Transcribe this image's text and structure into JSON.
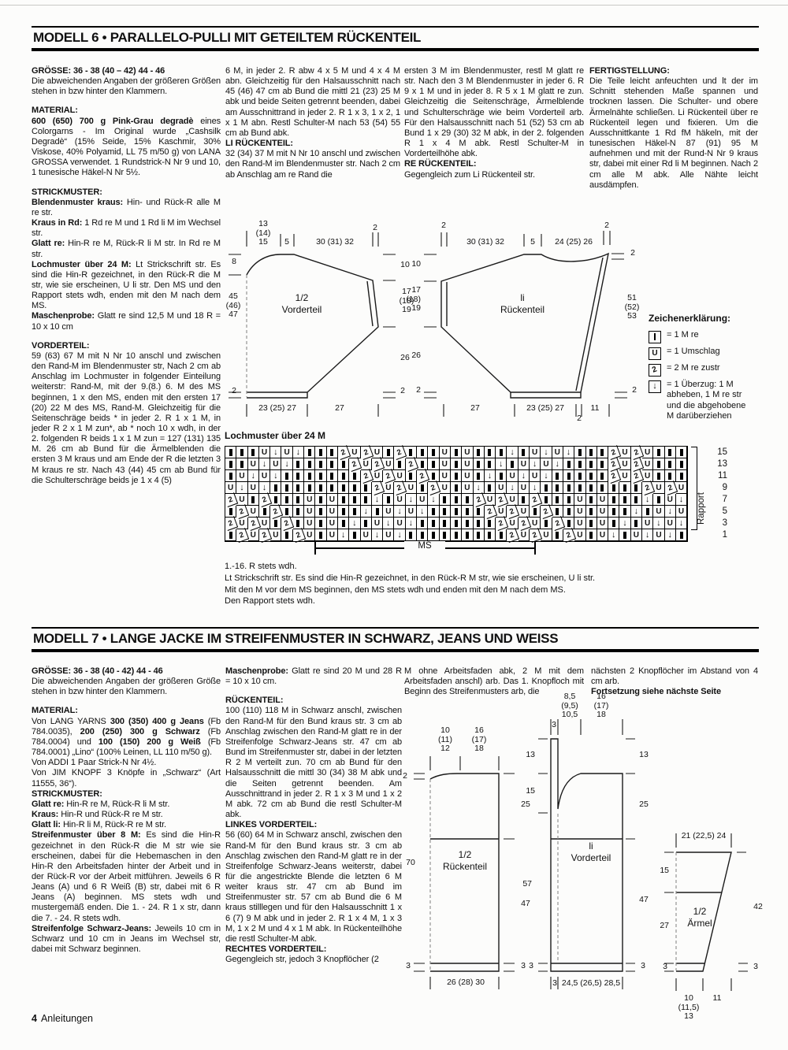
{
  "page": {
    "footer_number": "4",
    "footer_label": "Anleitungen"
  },
  "model6": {
    "title": "MODELL 6 • PARALLELO-PULLI MIT GETEILTEM RÜCKENTEIL",
    "columns": [
      [
        {
          "runs": [
            {
              "b": true,
              "t": "GRÖSSE: 36 - 38 (40 – 42) 44 - 46"
            }
          ]
        },
        {
          "runs": [
            {
              "t": "Die abweichenden Angaben der größeren Größen stehen in bzw hinter den Klammern."
            }
          ]
        },
        {
          "gap": true,
          "runs": [
            {
              "b": true,
              "t": "MATERIAL:"
            }
          ]
        },
        {
          "runs": [
            {
              "b": true,
              "t": "600 (650) 700 g Pink-Grau degradè "
            },
            {
              "t": "eines Colorgarns - Im Original wurde „Cashsilk Degradè“ (15% Seide, 15% Kaschmir, 30% Viskose, 40% Polyamid, LL 75 m/50 g) von LANA GROSSA verwendet. 1 Rundstrick-N Nr 9 und 10, 1 tunesische Häkel-N Nr 5½."
            }
          ]
        },
        {
          "gap": true,
          "runs": [
            {
              "b": true,
              "t": "STRICKMUSTER:"
            }
          ]
        },
        {
          "runs": [
            {
              "b": true,
              "t": "Blendenmuster kraus: "
            },
            {
              "t": "Hin- und Rück-R alle M re str."
            }
          ]
        },
        {
          "runs": [
            {
              "b": true,
              "t": "Kraus in Rd: "
            },
            {
              "t": "1 Rd re M und 1 Rd li M im Wechsel str."
            }
          ]
        },
        {
          "runs": [
            {
              "b": true,
              "t": "Glatt re: "
            },
            {
              "t": "Hin-R re M, Rück-R li M str. In Rd re M str."
            }
          ]
        },
        {
          "runs": [
            {
              "b": true,
              "t": "Lochmuster über 24 M: "
            },
            {
              "t": "Lt Strickschrift str. Es sind die Hin-R gezeichnet, in den Rück-R die M str, wie sie erscheinen, U li str. Den MS und den Rapport stets wdh, enden mit den M nach dem MS."
            }
          ]
        },
        {
          "runs": [
            {
              "b": true,
              "t": "Maschenprobe: "
            },
            {
              "t": "Glatt re sind 12,5 M und 18 R = 10 x 10 cm"
            }
          ]
        },
        {
          "gap": true,
          "runs": [
            {
              "b": true,
              "t": "VORDERTEIL:"
            }
          ]
        },
        {
          "runs": [
            {
              "t": "59 (63) 67 M mit N Nr 10 anschl und zwischen den Rand-M im Blendenmuster str, Nach 2 cm ab Anschlag im Lochmuster in folgender Einteilung weiterstr: Rand-M, mit der 9.(8.) 6. M des MS beginnen, 1 x den MS, enden mit den ersten 17 (20) 22 M des MS, Rand-M. Gleichzeitig für die Seitenschräge beids * in jeder 2. R 1 x 1 M, in jeder R 2 x 1 M zun*, ab * noch 10 x wdh, in der 2. folgenden R beids 1 x 1 M zun = 127 (131) 135 M. 26 cm ab Bund für die Ärmelblenden die ersten 3 M kraus und am Ende der R die letzten 3 M kraus re str. Nach 43 (44) 45 cm ab Bund für die Schulterschräge beids je 1 x 4 (5)"
            }
          ]
        }
      ],
      [
        {
          "runs": [
            {
              "t": "6 M, in jeder 2. R abw 4 x 5 M und 4 x 4 M abn. Gleichzeitig für den Halsausschnitt nach 45 (46) 47 cm ab Bund die mittl 21 (23) 25 M abk und beide Seiten getrennt beenden, dabei am Ausschnittrand in jeder 2. R 1 x 3, 1 x 2, 1 x 1 M abn. Restl Schulter-M nach 53 (54) 55 cm ab Bund abk."
            }
          ]
        },
        {
          "runs": [
            {
              "b": true,
              "t": "LI RÜCKENTEIL:"
            }
          ]
        },
        {
          "runs": [
            {
              "t": "32 (34) 37 M mit N Nr 10 anschl und zwischen den Rand-M im Blendenmuster str. Nach 2 cm ab Anschlag am re Rand die"
            }
          ]
        }
      ],
      [
        {
          "runs": [
            {
              "t": "ersten 3 M im Blendenmuster, restl M glatt re str. Nach den 3 M Blendenmuster in jeder 6. R 9 x 1 M und in jeder 8. R 5 x 1 M glatt re zun. Gleichzeitig die Seitenschräge, Ärmelblende und Schulterschräge wie beim Vorderteil arb. Für den Halsausschnitt nach 51 (52) 53 cm ab Bund 1 x 29 (30) 32 M abk, in der 2. folgenden R 1 x 4 M abk. Restl Schulter-M in Vorderteilhöhe abk."
            }
          ]
        },
        {
          "runs": [
            {
              "b": true,
              "t": "RE RÜCKENTEIL:"
            }
          ]
        },
        {
          "runs": [
            {
              "t": "Gegengleich zum Li Rückenteil str."
            }
          ]
        }
      ],
      [
        {
          "runs": [
            {
              "b": true,
              "t": "FERTIGSTELLUNG:"
            }
          ]
        },
        {
          "runs": [
            {
              "t": "Die Teile leicht anfeuchten und lt der im Schnitt stehenden Maße spannen und trocknen lassen. Die Schulter- und obere Ärmelnähte schließen. Li Rückenteil über re Rückenteil legen und fixieren. Um die Ausschnittkante 1 Rd fM häkeln, mit der tunesischen Häkel-N 87 (91) 95 M aufnehmen und mit der Rund-N Nr 9 kraus str, dabei mit einer Rd li M beginnen. Nach 2 cm alle M abk. Alle Nähte leicht ausdämpfen."
            }
          ]
        }
      ]
    ],
    "front": {
      "name": "1/2\nVorderteil",
      "t1": "13\n(14)\n15",
      "t2": "5",
      "t3": "30 (31) 32",
      "t4": "2",
      "l1": "8",
      "l2": "45\n(46)\n47",
      "l3": "2",
      "r1": "10",
      "r2": "17\n(18)\n19",
      "r3": "26",
      "r4": "2",
      "b1": "23 (25) 27",
      "b2": "27"
    },
    "back": {
      "name": "li\nRückenteil",
      "t1": "2",
      "t2": "30 (31) 32",
      "t3": "5",
      "t4": "24 (25) 26",
      "t5": "2",
      "l1": "10",
      "l2": "17\n(18)\n19",
      "l3": "26",
      "l4": "2",
      "r1": "2",
      "r2": "51\n(52)\n53",
      "r3": "2",
      "b1": "27",
      "b2": "23 (25) 27",
      "b3": "2",
      "b4": "11"
    },
    "legend": {
      "title": "Zeichenerklärung:",
      "items": [
        {
          "sym": "I",
          "text": "= 1 M re"
        },
        {
          "sym": "U",
          "text": "= 1 Umschlag"
        },
        {
          "sym": "2",
          "text": "= 2 M re zustr"
        },
        {
          "sym": "D",
          "text": "= 1 Überzug: 1 M\nabheben, 1 M re str\nund die abgehobene\nM darüberziehen"
        }
      ]
    },
    "chart": {
      "title": "Lochmuster über 24 M",
      "ms_label": "MS",
      "rapport_label": "Rapport",
      "row_numbers": [
        "15",
        "13",
        "11",
        "9",
        "7",
        "5",
        "3",
        "1"
      ],
      "rows": [
        "IIIUDUDIII2U2UI2IIIUIUIIIDIUDUDIII2U2UIII",
        "IIUDUDIIIII2U2UI2IIUIUIIDIUDUDIIII2U2UIII",
        "IUDUDIIIIIII2U2UI2IUIUIDIUDUDIIIII2U2UIII",
        "UDUDIIIIIIIII2U2UI2UIUDIUDUDIIIIIIIII2U2U",
        "2UI2IIIUIUIIIDIUDUDIII2U2UI2IIIUIUIIIDIUD",
        "I2UI2IIUIUIIDIUDUDIIIII2U2UI2IIUIUIIDIUDU",
        "2U2UI2IUIUIDIUDUDIIIIIII2U2UI2IUIUIDIUDUD",
        "I2U2UI2UIUDIUDUDIIIIIIIII2U2UI2UIUDIUDUDI"
      ],
      "notes": [
        "1.-16. R stets wdh.",
        "Lt Strickschrift str. Es sind die Hin-R gezeichnet, in den Rück-R M str, wie sie erscheinen, U li str.",
        "Mit den M vor dem MS beginnen, den MS stets wdh und enden mit den M nach dem MS.",
        "Den Rapport stets wdh."
      ]
    }
  },
  "model7": {
    "title": "MODELL 7 • LANGE JACKE IM STREIFENMUSTER IN SCHWARZ, JEANS UND WEISS",
    "columns": [
      [
        {
          "runs": [
            {
              "b": true,
              "t": "GRÖSSE: 36 - 38 (40 - 42) 44 - 46"
            }
          ]
        },
        {
          "runs": [
            {
              "t": "Die abweichenden Angaben der größeren Größe stehen in bzw hinter den Klammern."
            }
          ]
        },
        {
          "gap": true,
          "runs": [
            {
              "b": true,
              "t": "MATERIAL:"
            }
          ]
        },
        {
          "runs": [
            {
              "t": "Von LANG YARNS "
            },
            {
              "b": true,
              "t": "300 (350) 400 g Jeans"
            },
            {
              "t": " (Fb 784.0035), "
            },
            {
              "b": true,
              "t": "200 (250) 300 g Schwarz"
            },
            {
              "t": " (Fb 784.0004) und "
            },
            {
              "b": true,
              "t": "100 (150) 200 g Weiß"
            },
            {
              "t": " (Fb 784.0001) „Lino“ (100% Leinen, LL 110 m/50 g)."
            }
          ]
        },
        {
          "runs": [
            {
              "t": "Von ADDI 1 Paar Strick-N Nr 4½."
            }
          ]
        },
        {
          "runs": [
            {
              "t": "Von JIM KNOPF 3 Knöpfe in „Schwarz“ (Art 11555, 36“)."
            }
          ]
        },
        {
          "runs": [
            {
              "b": true,
              "t": "STRICKMUSTER:"
            }
          ]
        },
        {
          "runs": [
            {
              "b": true,
              "t": "Glatt re: "
            },
            {
              "t": "Hin-R re M, Rück-R li M str."
            }
          ]
        },
        {
          "runs": [
            {
              "b": true,
              "t": "Kraus: "
            },
            {
              "t": "Hin-R und Rück-R re M str."
            }
          ]
        },
        {
          "runs": [
            {
              "b": true,
              "t": "Glatt li: "
            },
            {
              "t": "Hin-R li M, Rück-R re M str."
            }
          ]
        },
        {
          "runs": [
            {
              "b": true,
              "t": "Streifenmuster über 8 M: "
            },
            {
              "t": "Es sind die Hin-R gezeichnet in den Rück-R die M str wie sie erscheinen, dabei für die Hebemaschen in den Hin-R den Arbeitsfaden hinter der Arbeit und in der Rück-R vor der Arbeit mitführen. Jeweils 6 R Jeans (A) und 6 R Weiß (B) str, dabei mit 6 R Jeans (A) beginnen. MS stets wdh und mustergemäß enden. Die 1. - 24. R 1 x str, dann die 7. - 24. R stets wdh."
            }
          ]
        },
        {
          "runs": [
            {
              "b": true,
              "t": "Streifenfolge Schwarz-Jeans: "
            },
            {
              "t": "Jeweils 10 cm in Schwarz und 10 cm in Jeans im Wechsel str, dabei mit Schwarz beginnen."
            }
          ]
        }
      ],
      [
        {
          "runs": [
            {
              "b": true,
              "t": "Maschenprobe: "
            },
            {
              "t": "Glatt re sind 20 M und 28 R = 10 x 10 cm."
            }
          ]
        },
        {
          "gap": true,
          "runs": [
            {
              "b": true,
              "t": "RÜCKENTEIL:"
            }
          ]
        },
        {
          "runs": [
            {
              "t": "100 (110) 118 M in Schwarz anschl, zwischen den Rand-M für den Bund kraus str. 3 cm ab Anschlag zwischen den Rand-M glatt re in der Streifenfolge Schwarz-Jeans str. 47 cm ab Bund im Streifenmuster str, dabei in der letzten R 2 M verteilt zun. 70 cm ab Bund für den Halsausschnitt die mittl 30 (34) 38 M abk und die Seiten getrennt beenden. Am Ausschnittrand in jeder 2. R 1 x 3 M und 1 x 2 M abk. 72 cm ab Bund die restl Schulter-M abk."
            }
          ]
        },
        {
          "runs": [
            {
              "b": true,
              "t": "LINKES VORDERTEIL:"
            }
          ]
        },
        {
          "runs": [
            {
              "t": "56 (60) 64 M in Schwarz anschl, zwischen den Rand-M für den Bund kraus str. 3 cm ab Anschlag zwischen den Rand-M glatt re in der Streifenfolge Schwarz-Jeans weiterstr, dabei für die angestrickte Blende die letzten 6 M weiter kraus str. 47 cm ab Bund im Streifenmuster str. 57 cm ab Bund die 6 M kraus stilllegen und für den Halsausschnitt 1 x 6 (7) 9 M abk und in jeder 2. R 1 x 4 M, 1 x 3 M, 1 x 2 M und 4 x 1 M abk. In Rückenteilhöhe die restl Schulter-M abk."
            }
          ]
        },
        {
          "runs": [
            {
              "b": true,
              "t": "RECHTES VORDERTEIL:"
            }
          ]
        },
        {
          "runs": [
            {
              "t": "Gegengleich str, jedoch 3 Knopflöcher (2"
            }
          ]
        }
      ],
      [
        {
          "runs": [
            {
              "t": "M ohne Arbeitsfaden abk, 2 M mit dem Arbeitsfaden anschl) arb. Das 1. Knopfloch mit Beginn des Streifenmusters arb, die"
            }
          ]
        }
      ],
      [
        {
          "runs": [
            {
              "t": "nächsten 2 Knopflöcher im Abstand von 4 cm arb."
            }
          ]
        },
        {
          "runs": [
            {
              "b": true,
              "t": "Fortsetzung siehe nächste Seite"
            }
          ]
        }
      ]
    ],
    "back": {
      "name": "1/2\nRückenteil",
      "t1": "10\n(11)\n12",
      "t2": "16\n(17)\n18",
      "l1": "2",
      "l2": "70",
      "l3": "3",
      "r1": "25",
      "r2": "47",
      "r3": "3",
      "b1": "26 (28) 30"
    },
    "front": {
      "name": "li\nVorderteil",
      "t0": "3",
      "t1": "8,5\n(9,5)\n10,5",
      "t2": "16\n(17)\n18",
      "l1": "13",
      "l2": "15",
      "l3": "57",
      "l4": "3",
      "r1": "13",
      "r2": "25",
      "r3": "47",
      "r4": "3",
      "b0": "3",
      "b1": "24,5 (26,5) 28,5"
    },
    "sleeve": {
      "name": "1/2\nÄrmel",
      "t1": "21 (22,5) 24",
      "l1": "15",
      "l2": "27",
      "l3": "3",
      "r1": "42",
      "r2": "3",
      "b1": "10\n(11,5)\n13",
      "b2": "11"
    }
  }
}
